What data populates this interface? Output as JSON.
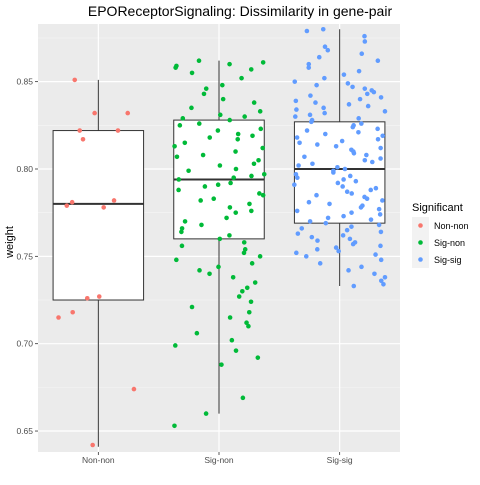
{
  "chart_data": {
    "type": "boxplot-jitter",
    "title": "EPOReceptorSignaling: Dissimilarity in gene-pair",
    "xlabel": "",
    "ylabel": "weight",
    "ylim": [
      0.638,
      0.883
    ],
    "yticks": [
      0.65,
      0.7,
      0.75,
      0.8,
      0.85
    ],
    "ytick_labels": [
      "0.65",
      "0.70",
      "0.75",
      "0.80",
      "0.85"
    ],
    "grid": true,
    "panel_background": "#ebebeb",
    "legend": {
      "title": "Significant",
      "position": "right",
      "entries": [
        "Non-non",
        "Sig-non",
        "Sig-sig"
      ]
    },
    "categories": [
      "Non-non",
      "Sig-non",
      "Sig-sig"
    ],
    "colors": [
      "#f8766d",
      "#00ba38",
      "#619cff"
    ],
    "series": [
      {
        "name": "Non-non",
        "box": {
          "whisker_low": 0.641,
          "q1": 0.725,
          "median": 0.78,
          "q3": 0.822,
          "whisker_high": 0.851
        },
        "points": [
          0.851,
          0.832,
          0.832,
          0.822,
          0.822,
          0.817,
          0.782,
          0.781,
          0.779,
          0.778,
          0.727,
          0.726,
          0.718,
          0.715,
          0.674,
          0.642
        ]
      },
      {
        "name": "Sig-non",
        "box": {
          "whisker_low": 0.66,
          "q1": 0.76,
          "median": 0.794,
          "q3": 0.828,
          "whisker_high": 0.862
        },
        "points": [
          0.862,
          0.861,
          0.86,
          0.859,
          0.858,
          0.857,
          0.855,
          0.852,
          0.848,
          0.846,
          0.843,
          0.84,
          0.838,
          0.835,
          0.833,
          0.831,
          0.83,
          0.829,
          0.828,
          0.826,
          0.825,
          0.823,
          0.822,
          0.82,
          0.819,
          0.818,
          0.817,
          0.815,
          0.813,
          0.812,
          0.81,
          0.808,
          0.807,
          0.805,
          0.803,
          0.802,
          0.8,
          0.799,
          0.797,
          0.796,
          0.795,
          0.794,
          0.792,
          0.791,
          0.79,
          0.788,
          0.786,
          0.785,
          0.783,
          0.782,
          0.78,
          0.778,
          0.776,
          0.775,
          0.772,
          0.77,
          0.768,
          0.766,
          0.764,
          0.762,
          0.76,
          0.758,
          0.756,
          0.754,
          0.752,
          0.75,
          0.748,
          0.746,
          0.744,
          0.742,
          0.74,
          0.738,
          0.735,
          0.732,
          0.73,
          0.727,
          0.724,
          0.721,
          0.718,
          0.715,
          0.712,
          0.71,
          0.706,
          0.702,
          0.699,
          0.696,
          0.692,
          0.688,
          0.669,
          0.66,
          0.653
        ]
      },
      {
        "name": "Sig-sig",
        "box": {
          "whisker_low": 0.733,
          "q1": 0.769,
          "median": 0.8,
          "q3": 0.827,
          "whisker_high": 0.88
        },
        "points": [
          0.88,
          0.879,
          0.876,
          0.873,
          0.87,
          0.868,
          0.866,
          0.864,
          0.862,
          0.86,
          0.858,
          0.856,
          0.854,
          0.852,
          0.85,
          0.849,
          0.848,
          0.847,
          0.846,
          0.845,
          0.844,
          0.843,
          0.842,
          0.841,
          0.84,
          0.839,
          0.838,
          0.837,
          0.836,
          0.835,
          0.834,
          0.833,
          0.832,
          0.831,
          0.83,
          0.829,
          0.828,
          0.827,
          0.826,
          0.825,
          0.824,
          0.823,
          0.822,
          0.821,
          0.82,
          0.819,
          0.818,
          0.817,
          0.816,
          0.815,
          0.814,
          0.813,
          0.812,
          0.811,
          0.81,
          0.809,
          0.808,
          0.807,
          0.806,
          0.805,
          0.804,
          0.803,
          0.802,
          0.801,
          0.8,
          0.799,
          0.798,
          0.797,
          0.796,
          0.795,
          0.794,
          0.793,
          0.792,
          0.791,
          0.79,
          0.789,
          0.788,
          0.787,
          0.786,
          0.785,
          0.784,
          0.783,
          0.782,
          0.781,
          0.78,
          0.779,
          0.778,
          0.777,
          0.776,
          0.775,
          0.774,
          0.773,
          0.772,
          0.771,
          0.77,
          0.769,
          0.768,
          0.767,
          0.766,
          0.765,
          0.764,
          0.763,
          0.762,
          0.761,
          0.76,
          0.759,
          0.758,
          0.757,
          0.756,
          0.755,
          0.754,
          0.753,
          0.752,
          0.751,
          0.75,
          0.748,
          0.746,
          0.744,
          0.742,
          0.74,
          0.738,
          0.736,
          0.734,
          0.733
        ]
      }
    ]
  }
}
